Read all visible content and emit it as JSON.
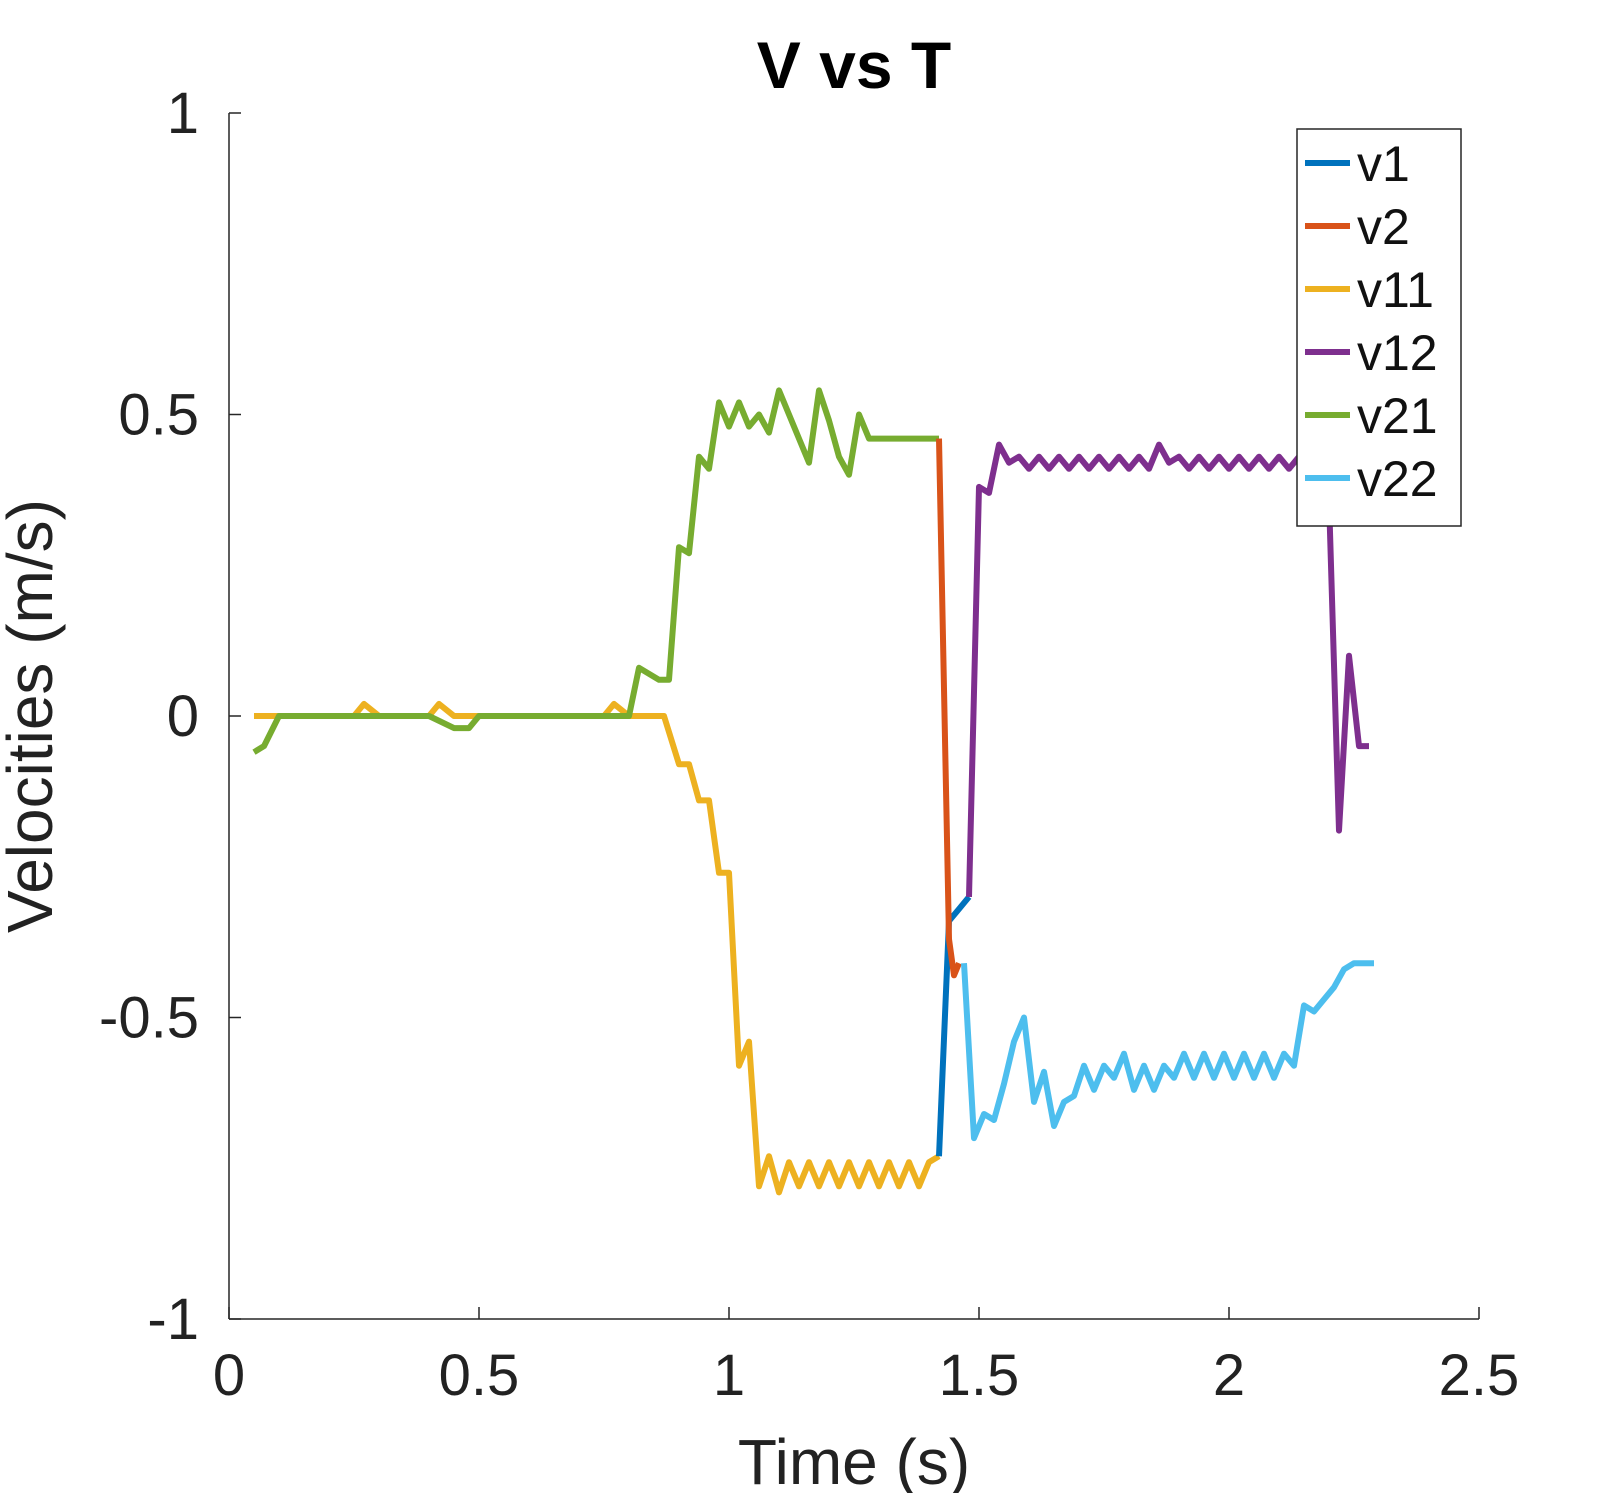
{
  "chart_data": {
    "type": "line",
    "title": "V vs T",
    "xlabel": "Time (s)",
    "ylabel": "Velocities (m/s)",
    "xlim": [
      0,
      2.5
    ],
    "ylim": [
      -1,
      1
    ],
    "xticks": [
      0,
      0.5,
      1,
      1.5,
      2,
      2.5
    ],
    "xtick_labels": [
      "0",
      "0.5",
      "1",
      "1.5",
      "2",
      "2.5"
    ],
    "yticks": [
      -1,
      -0.5,
      0,
      0.5,
      1
    ],
    "ytick_labels": [
      "-1",
      "-0.5",
      "0",
      "0.5",
      "1"
    ],
    "grid": false,
    "legend_position": "top-right",
    "series": [
      {
        "name": "v1",
        "color": "#0072BD",
        "x": [
          1.42,
          1.44,
          1.46,
          1.48
        ],
        "y": [
          -0.73,
          -0.34,
          -0.32,
          -0.3
        ]
      },
      {
        "name": "v2",
        "color": "#D95319",
        "x": [
          1.42,
          1.44,
          1.45,
          1.46
        ],
        "y": [
          0.46,
          -0.37,
          -0.43,
          -0.41
        ]
      },
      {
        "name": "v11",
        "color": "#EDB120",
        "x": [
          0.05,
          0.1,
          0.15,
          0.2,
          0.25,
          0.27,
          0.3,
          0.35,
          0.4,
          0.42,
          0.45,
          0.5,
          0.55,
          0.6,
          0.65,
          0.7,
          0.75,
          0.77,
          0.8,
          0.85,
          0.87,
          0.9,
          0.92,
          0.94,
          0.96,
          0.98,
          1.0,
          1.02,
          1.04,
          1.06,
          1.08,
          1.1,
          1.12,
          1.14,
          1.16,
          1.18,
          1.2,
          1.22,
          1.24,
          1.26,
          1.28,
          1.3,
          1.32,
          1.34,
          1.36,
          1.38,
          1.4,
          1.42
        ],
        "y": [
          0.0,
          0.0,
          0.0,
          0.0,
          0.0,
          0.02,
          0.0,
          0.0,
          0.0,
          0.02,
          0.0,
          0.0,
          0.0,
          0.0,
          0.0,
          0.0,
          0.0,
          0.02,
          0.0,
          0.0,
          0.0,
          -0.08,
          -0.08,
          -0.14,
          -0.14,
          -0.26,
          -0.26,
          -0.58,
          -0.54,
          -0.78,
          -0.73,
          -0.79,
          -0.74,
          -0.78,
          -0.74,
          -0.78,
          -0.74,
          -0.78,
          -0.74,
          -0.78,
          -0.74,
          -0.78,
          -0.74,
          -0.78,
          -0.74,
          -0.78,
          -0.74,
          -0.73
        ]
      },
      {
        "name": "v12",
        "color": "#7E2F8E",
        "x": [
          1.48,
          1.5,
          1.52,
          1.54,
          1.56,
          1.58,
          1.6,
          1.62,
          1.64,
          1.66,
          1.68,
          1.7,
          1.72,
          1.74,
          1.76,
          1.78,
          1.8,
          1.82,
          1.84,
          1.86,
          1.88,
          1.9,
          1.92,
          1.94,
          1.96,
          1.98,
          2.0,
          2.02,
          2.04,
          2.06,
          2.08,
          2.1,
          2.12,
          2.14,
          2.16,
          2.18,
          2.2,
          2.22,
          2.24,
          2.26,
          2.28
        ],
        "y": [
          -0.3,
          0.38,
          0.37,
          0.45,
          0.42,
          0.43,
          0.41,
          0.43,
          0.41,
          0.43,
          0.41,
          0.43,
          0.41,
          0.43,
          0.41,
          0.43,
          0.41,
          0.43,
          0.41,
          0.45,
          0.42,
          0.43,
          0.41,
          0.43,
          0.41,
          0.43,
          0.41,
          0.43,
          0.41,
          0.43,
          0.41,
          0.43,
          0.41,
          0.43,
          0.41,
          0.43,
          0.36,
          -0.19,
          0.1,
          -0.05,
          -0.05
        ]
      },
      {
        "name": "v21",
        "color": "#77AC30",
        "x": [
          0.05,
          0.07,
          0.1,
          0.15,
          0.2,
          0.25,
          0.3,
          0.35,
          0.4,
          0.45,
          0.48,
          0.5,
          0.55,
          0.6,
          0.65,
          0.7,
          0.75,
          0.8,
          0.82,
          0.84,
          0.86,
          0.88,
          0.9,
          0.92,
          0.94,
          0.96,
          0.98,
          1.0,
          1.02,
          1.04,
          1.06,
          1.08,
          1.1,
          1.12,
          1.14,
          1.16,
          1.18,
          1.2,
          1.22,
          1.24,
          1.26,
          1.28,
          1.3,
          1.32,
          1.34,
          1.36,
          1.38,
          1.4,
          1.42
        ],
        "y": [
          -0.06,
          -0.05,
          0.0,
          0.0,
          0.0,
          0.0,
          0.0,
          0.0,
          0.0,
          -0.02,
          -0.02,
          0.0,
          0.0,
          0.0,
          0.0,
          0.0,
          0.0,
          0.0,
          0.08,
          0.07,
          0.06,
          0.06,
          0.28,
          0.27,
          0.43,
          0.41,
          0.52,
          0.48,
          0.52,
          0.48,
          0.5,
          0.47,
          0.54,
          0.5,
          0.46,
          0.42,
          0.54,
          0.49,
          0.43,
          0.4,
          0.5,
          0.46,
          0.46,
          0.46,
          0.46,
          0.46,
          0.46,
          0.46,
          0.46
        ]
      },
      {
        "name": "v22",
        "color": "#4DBEEE",
        "x": [
          1.47,
          1.49,
          1.51,
          1.53,
          1.55,
          1.57,
          1.59,
          1.61,
          1.63,
          1.65,
          1.67,
          1.69,
          1.71,
          1.73,
          1.75,
          1.77,
          1.79,
          1.81,
          1.83,
          1.85,
          1.87,
          1.89,
          1.91,
          1.93,
          1.95,
          1.97,
          1.99,
          2.01,
          2.03,
          2.05,
          2.07,
          2.09,
          2.11,
          2.13,
          2.15,
          2.17,
          2.19,
          2.21,
          2.23,
          2.25,
          2.27,
          2.29
        ],
        "y": [
          -0.41,
          -0.7,
          -0.66,
          -0.67,
          -0.61,
          -0.54,
          -0.5,
          -0.64,
          -0.59,
          -0.68,
          -0.64,
          -0.63,
          -0.58,
          -0.62,
          -0.58,
          -0.6,
          -0.56,
          -0.62,
          -0.58,
          -0.62,
          -0.58,
          -0.6,
          -0.56,
          -0.6,
          -0.56,
          -0.6,
          -0.56,
          -0.6,
          -0.56,
          -0.6,
          -0.56,
          -0.6,
          -0.56,
          -0.58,
          -0.48,
          -0.49,
          -0.47,
          -0.45,
          -0.42,
          -0.41,
          -0.41,
          -0.41
        ]
      }
    ]
  }
}
